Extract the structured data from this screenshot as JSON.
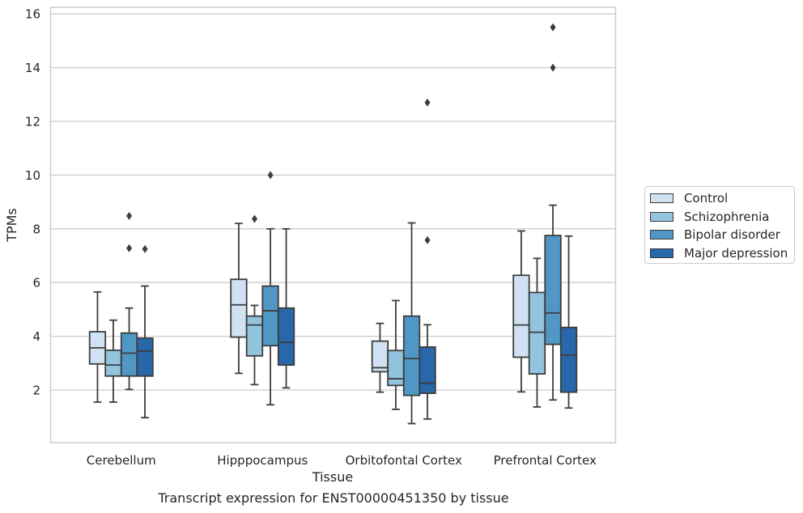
{
  "chart_data": {
    "type": "box",
    "caption": "Transcript expression for ENST00000451350 by tissue",
    "xlabel": "Tissue",
    "ylabel": "TPMs",
    "ylim": [
      0,
      16.25
    ],
    "yticks": [
      "2",
      "4",
      "6",
      "8",
      "10",
      "12",
      "14",
      "16"
    ],
    "grid": "horizontal",
    "legend_position": "right",
    "categories": [
      "Cerebellum",
      "Hipppocampus",
      "Orbitofontal Cortex",
      "Prefrontal Cortex"
    ],
    "series": [
      {
        "name": "Control",
        "color": "#cfe1f2",
        "boxes": [
          {
            "whislo": 1.55,
            "q1": 2.97,
            "med": 3.57,
            "q3": 4.17,
            "whishi": 5.65,
            "fliers": []
          },
          {
            "whislo": 2.62,
            "q1": 3.97,
            "med": 5.17,
            "q3": 6.12,
            "whishi": 8.2,
            "fliers": []
          },
          {
            "whislo": 1.92,
            "q1": 2.68,
            "med": 2.83,
            "q3": 3.82,
            "whishi": 4.48,
            "fliers": []
          },
          {
            "whislo": 1.93,
            "q1": 3.22,
            "med": 4.42,
            "q3": 6.27,
            "whishi": 7.92,
            "fliers": []
          }
        ]
      },
      {
        "name": "Schizophrenia",
        "color": "#93c4de",
        "boxes": [
          {
            "whislo": 1.55,
            "q1": 2.52,
            "med": 2.93,
            "q3": 3.48,
            "whishi": 4.6,
            "fliers": []
          },
          {
            "whislo": 2.2,
            "q1": 3.27,
            "med": 4.42,
            "q3": 4.75,
            "whishi": 5.15,
            "fliers": [
              8.37
            ]
          },
          {
            "whislo": 1.28,
            "q1": 2.17,
            "med": 2.42,
            "q3": 3.47,
            "whishi": 5.33,
            "fliers": []
          },
          {
            "whislo": 1.37,
            "q1": 2.6,
            "med": 4.15,
            "q3": 5.63,
            "whishi": 6.9,
            "fliers": []
          }
        ]
      },
      {
        "name": "Bipolar disorder",
        "color": "#5197c6",
        "boxes": [
          {
            "whislo": 2.02,
            "q1": 2.52,
            "med": 3.37,
            "q3": 4.12,
            "whishi": 5.05,
            "fliers": [
              7.28,
              8.48
            ]
          },
          {
            "whislo": 1.45,
            "q1": 3.65,
            "med": 4.95,
            "q3": 5.87,
            "whishi": 8.0,
            "fliers": [
              10.0
            ]
          },
          {
            "whislo": 0.75,
            "q1": 1.8,
            "med": 3.17,
            "q3": 4.75,
            "whishi": 8.22,
            "fliers": []
          },
          {
            "whislo": 1.63,
            "q1": 3.7,
            "med": 4.87,
            "q3": 7.75,
            "whishi": 8.88,
            "fliers": [
              14.0,
              15.5
            ]
          }
        ]
      },
      {
        "name": "Major depression",
        "color": "#2767aa",
        "boxes": [
          {
            "whislo": 0.97,
            "q1": 2.52,
            "med": 3.45,
            "q3": 3.93,
            "whishi": 5.87,
            "fliers": [
              7.25
            ]
          },
          {
            "whislo": 2.08,
            "q1": 2.93,
            "med": 3.78,
            "q3": 5.05,
            "whishi": 8.0,
            "fliers": []
          },
          {
            "whislo": 0.92,
            "q1": 1.88,
            "med": 2.25,
            "q3": 3.6,
            "whishi": 4.43,
            "fliers": [
              7.58,
              12.7
            ]
          },
          {
            "whislo": 1.33,
            "q1": 1.92,
            "med": 3.3,
            "q3": 4.33,
            "whishi": 7.73,
            "fliers": []
          }
        ]
      }
    ]
  }
}
